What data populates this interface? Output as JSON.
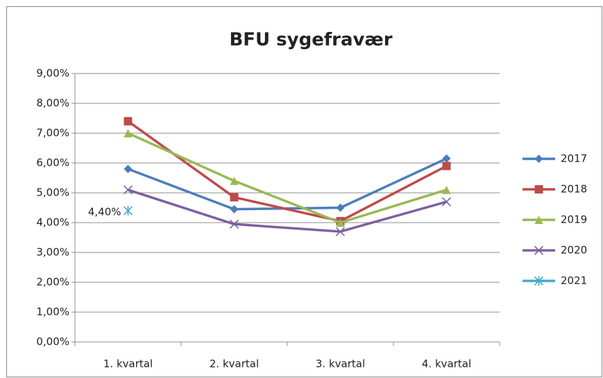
{
  "chart_data": {
    "type": "line",
    "title": "BFU sygefravær",
    "categories": [
      "1. kvartal",
      "2. kvartal",
      "3. kvartal",
      "4. kvartal"
    ],
    "series": [
      {
        "name": "2017",
        "color": "#4a7ebb",
        "marker": "diamond",
        "values": [
          5.8,
          4.45,
          4.5,
          6.15
        ]
      },
      {
        "name": "2018",
        "color": "#be4b48",
        "marker": "square",
        "values": [
          7.4,
          4.85,
          4.05,
          5.9
        ]
      },
      {
        "name": "2019",
        "color": "#98b954",
        "marker": "triangle",
        "values": [
          7.0,
          5.4,
          4.0,
          5.1
        ]
      },
      {
        "name": "2020",
        "color": "#7d60a0",
        "marker": "x",
        "values": [
          5.1,
          3.95,
          3.7,
          4.7
        ]
      },
      {
        "name": "2021",
        "color": "#46aac5",
        "marker": "star",
        "values": [
          4.4,
          null,
          null,
          null
        ],
        "value_labels": [
          "4,40%",
          null,
          null,
          null
        ]
      }
    ],
    "ylim": [
      0,
      9
    ],
    "yticks": [
      {
        "value": 0,
        "label": "0,00%"
      },
      {
        "value": 1,
        "label": "1,00%"
      },
      {
        "value": 2,
        "label": "2,00%"
      },
      {
        "value": 3,
        "label": "3,00%"
      },
      {
        "value": 4,
        "label": "4,00%"
      },
      {
        "value": 5,
        "label": "5,00%"
      },
      {
        "value": 6,
        "label": "6,00%"
      },
      {
        "value": 7,
        "label": "7,00%"
      },
      {
        "value": 8,
        "label": "8,00%"
      },
      {
        "value": 9,
        "label": "9,00%"
      }
    ],
    "grid": true,
    "legend": "right"
  }
}
